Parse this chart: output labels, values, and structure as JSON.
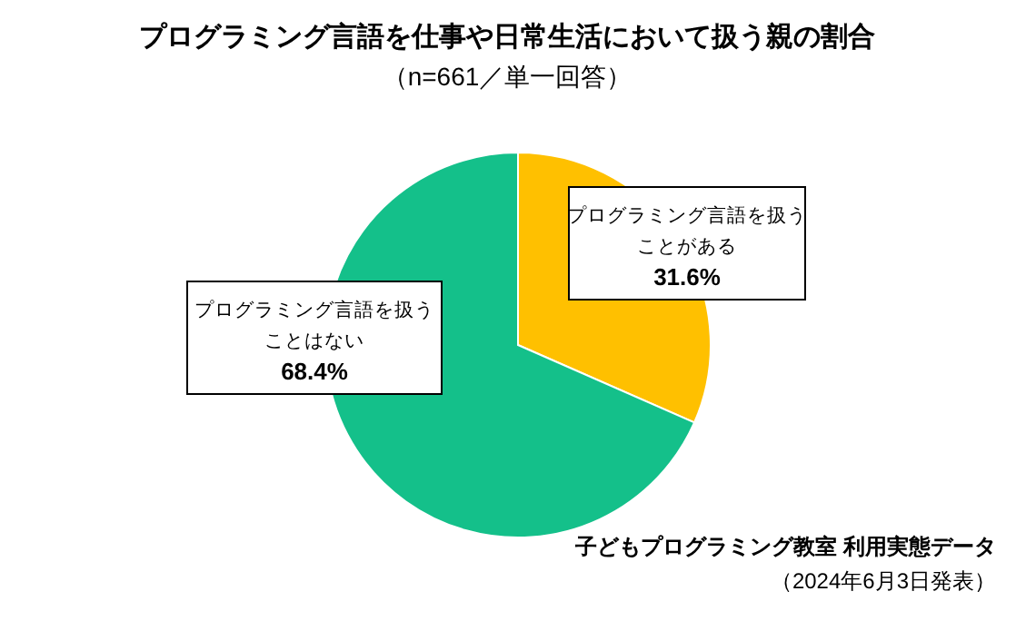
{
  "chart_data": {
    "type": "pie",
    "title": "プログラミング言語を仕事や日常生活において扱う親の割合",
    "subtitle": "（n=661／単一回答）",
    "categories": [
      "プログラミング言語を扱うことがある",
      "プログラミング言語を扱うことはない"
    ],
    "values": [
      31.6,
      68.4
    ],
    "value_labels": [
      "31.6%",
      "68.4%"
    ],
    "colors": [
      "#ffc000",
      "#14c08a"
    ],
    "annotations": [
      "子どもプログラミング教室 利用実態データ",
      "（2024年6月3日発表）"
    ]
  }
}
